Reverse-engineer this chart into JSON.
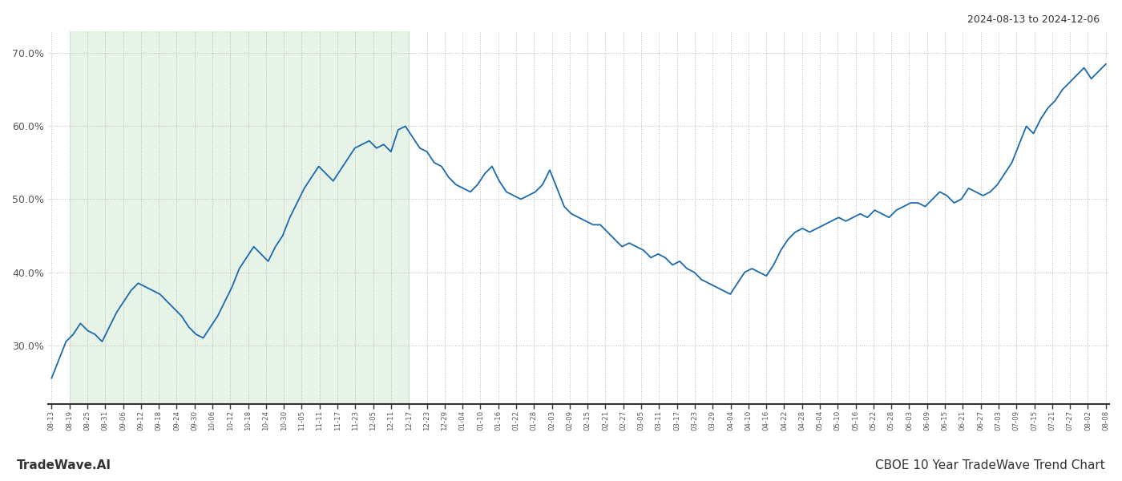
{
  "title_top_right": "2024-08-13 to 2024-12-06",
  "footer_left": "TradeWave.AI",
  "footer_right": "CBOE 10 Year TradeWave Trend Chart",
  "line_color": "#1a6aad",
  "line_width": 1.3,
  "background_color": "#ffffff",
  "grid_color": "#bbbbbb",
  "grid_linestyle": ":",
  "highlight_fill": "#c8e6c9",
  "highlight_alpha": 0.45,
  "ylim": [
    22,
    73
  ],
  "yticks": [
    30.0,
    40.0,
    50.0,
    60.0,
    70.0
  ],
  "ytick_labels": [
    "30.0%",
    "40.0%",
    "50.0%",
    "60.0%",
    "70.0%"
  ],
  "x_labels": [
    "08-13",
    "08-19",
    "08-25",
    "08-31",
    "09-06",
    "09-12",
    "09-18",
    "09-24",
    "09-30",
    "10-06",
    "10-12",
    "10-18",
    "10-24",
    "10-30",
    "11-05",
    "11-11",
    "11-17",
    "11-23",
    "12-05",
    "12-11",
    "12-17",
    "12-23",
    "12-29",
    "01-04",
    "01-10",
    "01-16",
    "01-22",
    "01-28",
    "02-03",
    "02-09",
    "02-15",
    "02-21",
    "02-27",
    "03-05",
    "03-11",
    "03-17",
    "03-23",
    "03-29",
    "04-04",
    "04-10",
    "04-16",
    "04-22",
    "04-28",
    "05-04",
    "05-10",
    "05-16",
    "05-22",
    "05-28",
    "06-03",
    "06-09",
    "06-15",
    "06-21",
    "06-27",
    "07-03",
    "07-09",
    "07-15",
    "07-21",
    "07-27",
    "08-02",
    "08-08"
  ],
  "highlight_start_label": "08-19",
  "highlight_end_label": "12-17",
  "values": [
    25.5,
    28.0,
    30.5,
    31.5,
    33.0,
    32.0,
    31.5,
    30.5,
    32.5,
    34.5,
    36.0,
    37.5,
    38.5,
    38.0,
    37.5,
    37.0,
    36.0,
    35.0,
    34.0,
    32.5,
    31.5,
    31.0,
    32.5,
    34.0,
    36.0,
    38.0,
    40.5,
    42.0,
    43.5,
    42.5,
    41.5,
    43.5,
    45.0,
    47.5,
    49.5,
    51.5,
    53.0,
    54.5,
    53.5,
    52.5,
    54.0,
    55.5,
    57.0,
    57.5,
    58.0,
    57.0,
    57.5,
    56.5,
    59.5,
    60.0,
    58.5,
    57.0,
    56.5,
    55.0,
    54.5,
    53.0,
    52.0,
    51.5,
    51.0,
    52.0,
    53.5,
    54.5,
    52.5,
    51.0,
    50.5,
    50.0,
    50.5,
    51.0,
    52.0,
    54.0,
    51.5,
    49.0,
    48.0,
    47.5,
    47.0,
    46.5,
    46.5,
    45.5,
    44.5,
    43.5,
    44.0,
    43.5,
    43.0,
    42.0,
    42.5,
    42.0,
    41.0,
    41.5,
    40.5,
    40.0,
    39.0,
    38.5,
    38.0,
    37.5,
    37.0,
    38.5,
    40.0,
    40.5,
    40.0,
    39.5,
    41.0,
    43.0,
    44.5,
    45.5,
    46.0,
    45.5,
    46.0,
    46.5,
    47.0,
    47.5,
    47.0,
    47.5,
    48.0,
    47.5,
    48.5,
    48.0,
    47.5,
    48.5,
    49.0,
    49.5,
    49.5,
    49.0,
    50.0,
    51.0,
    50.5,
    49.5,
    50.0,
    51.5,
    51.0,
    50.5,
    51.0,
    52.0,
    53.5,
    55.0,
    57.5,
    60.0,
    59.0,
    61.0,
    62.5,
    63.5,
    65.0,
    66.0,
    67.0,
    68.0,
    66.5,
    67.5,
    68.5
  ]
}
